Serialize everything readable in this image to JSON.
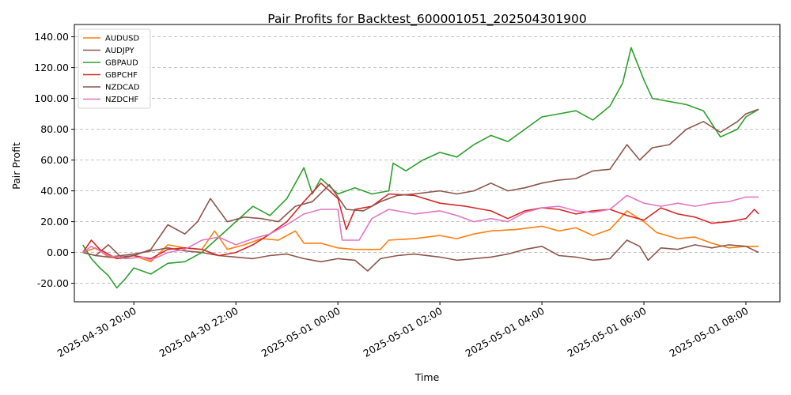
{
  "chart_data": {
    "type": "line",
    "title": "Pair Profits for Backtest_600001051_202504301900",
    "xlabel": "Time",
    "ylabel": "Pair Profit",
    "ylim": [
      -32,
      148
    ],
    "xlim": [
      "2025-04-30 18:50",
      "2025-05-01 08:40"
    ],
    "grid": "y-dashed",
    "legend_position": "top-left",
    "y_ticks": [
      "-20.00",
      "0.00",
      "20.00",
      "40.00",
      "60.00",
      "80.00",
      "100.00",
      "120.00",
      "140.00"
    ],
    "x_ticks": [
      "2025-04-30 20:00",
      "2025-04-30 22:00",
      "2025-05-01 00:00",
      "2025-05-01 02:00",
      "2025-05-01 04:00",
      "2025-05-01 06:00",
      "2025-05-01 08:00"
    ],
    "series": [
      {
        "name": "AUDUSD",
        "color": "#ff7f0e",
        "points": [
          [
            "2025-04-30 19:00",
            0
          ],
          [
            "2025-04-30 19:15",
            3
          ],
          [
            "2025-04-30 19:30",
            -3
          ],
          [
            "2025-04-30 19:45",
            -4
          ],
          [
            "2025-04-30 20:00",
            -2
          ],
          [
            "2025-04-30 20:20",
            -6
          ],
          [
            "2025-04-30 20:40",
            5
          ],
          [
            "2025-04-30 21:00",
            3
          ],
          [
            "2025-04-30 21:20",
            2
          ],
          [
            "2025-04-30 21:35",
            14
          ],
          [
            "2025-04-30 21:50",
            2
          ],
          [
            "2025-04-30 22:10",
            5
          ],
          [
            "2025-04-30 22:30",
            9
          ],
          [
            "2025-04-30 22:50",
            8
          ],
          [
            "2025-04-30 23:10",
            14
          ],
          [
            "2025-04-30 23:20",
            6
          ],
          [
            "2025-04-30 23:40",
            6
          ],
          [
            "2025-05-01 00:00",
            3
          ],
          [
            "2025-05-01 00:20",
            2
          ],
          [
            "2025-05-01 00:50",
            2
          ],
          [
            "2025-05-01 01:00",
            8
          ],
          [
            "2025-05-01 01:30",
            9
          ],
          [
            "2025-05-01 02:00",
            11
          ],
          [
            "2025-05-01 02:20",
            9
          ],
          [
            "2025-05-01 02:40",
            12
          ],
          [
            "2025-05-01 03:00",
            14
          ],
          [
            "2025-05-01 03:30",
            15
          ],
          [
            "2025-05-01 04:00",
            17
          ],
          [
            "2025-05-01 04:20",
            14
          ],
          [
            "2025-05-01 04:40",
            16
          ],
          [
            "2025-05-01 05:00",
            11
          ],
          [
            "2025-05-01 05:20",
            15
          ],
          [
            "2025-05-01 05:40",
            27
          ],
          [
            "2025-05-01 06:00",
            20
          ],
          [
            "2025-05-01 06:15",
            13
          ],
          [
            "2025-05-01 06:40",
            9
          ],
          [
            "2025-05-01 07:00",
            10
          ],
          [
            "2025-05-01 07:20",
            6
          ],
          [
            "2025-05-01 07:40",
            3
          ],
          [
            "2025-05-01 08:00",
            4
          ],
          [
            "2025-05-01 08:15",
            4
          ]
        ]
      },
      {
        "name": "AUDJPY",
        "color": "#8c564b",
        "points": [
          [
            "2025-04-30 19:00",
            0
          ],
          [
            "2025-04-30 19:15",
            -2
          ],
          [
            "2025-04-30 19:30",
            -3
          ],
          [
            "2025-04-30 19:45",
            -2
          ],
          [
            "2025-04-30 20:00",
            -1
          ],
          [
            "2025-04-30 20:20",
            1
          ],
          [
            "2025-04-30 20:40",
            3
          ],
          [
            "2025-04-30 21:00",
            1
          ],
          [
            "2025-04-30 21:20",
            0
          ],
          [
            "2025-04-30 21:40",
            -2
          ],
          [
            "2025-04-30 22:00",
            -3
          ],
          [
            "2025-04-30 22:20",
            -4
          ],
          [
            "2025-04-30 22:40",
            -2
          ],
          [
            "2025-04-30 23:00",
            -1
          ],
          [
            "2025-04-30 23:20",
            -4
          ],
          [
            "2025-04-30 23:40",
            -6
          ],
          [
            "2025-05-01 00:00",
            -4
          ],
          [
            "2025-05-01 00:20",
            -5
          ],
          [
            "2025-05-01 00:35",
            -12
          ],
          [
            "2025-05-01 00:50",
            -4
          ],
          [
            "2025-05-01 01:10",
            -2
          ],
          [
            "2025-05-01 01:30",
            -1
          ],
          [
            "2025-05-01 02:00",
            -3
          ],
          [
            "2025-05-01 02:20",
            -5
          ],
          [
            "2025-05-01 02:40",
            -4
          ],
          [
            "2025-05-01 03:00",
            -3
          ],
          [
            "2025-05-01 03:20",
            -1
          ],
          [
            "2025-05-01 03:40",
            2
          ],
          [
            "2025-05-01 04:00",
            4
          ],
          [
            "2025-05-01 04:20",
            -2
          ],
          [
            "2025-05-01 04:40",
            -3
          ],
          [
            "2025-05-01 05:00",
            -5
          ],
          [
            "2025-05-01 05:20",
            -4
          ],
          [
            "2025-05-01 05:40",
            8
          ],
          [
            "2025-05-01 05:55",
            4
          ],
          [
            "2025-05-01 06:05",
            -5
          ],
          [
            "2025-05-01 06:20",
            3
          ],
          [
            "2025-05-01 06:40",
            2
          ],
          [
            "2025-05-01 07:00",
            5
          ],
          [
            "2025-05-01 07:20",
            3
          ],
          [
            "2025-05-01 07:40",
            5
          ],
          [
            "2025-05-01 08:00",
            4
          ],
          [
            "2025-05-01 08:15",
            0
          ]
        ]
      },
      {
        "name": "GBPAUD",
        "color": "#2ca02c",
        "points": [
          [
            "2025-04-30 19:00",
            5
          ],
          [
            "2025-04-30 19:10",
            -4
          ],
          [
            "2025-04-30 19:20",
            -10
          ],
          [
            "2025-04-30 19:30",
            -15
          ],
          [
            "2025-04-30 19:40",
            -23
          ],
          [
            "2025-04-30 19:50",
            -17
          ],
          [
            "2025-04-30 20:00",
            -10
          ],
          [
            "2025-04-30 20:20",
            -14
          ],
          [
            "2025-04-30 20:40",
            -7
          ],
          [
            "2025-04-30 21:00",
            -6
          ],
          [
            "2025-04-30 21:20",
            0
          ],
          [
            "2025-04-30 21:40",
            10
          ],
          [
            "2025-04-30 22:00",
            20
          ],
          [
            "2025-04-30 22:20",
            30
          ],
          [
            "2025-04-30 22:40",
            24
          ],
          [
            "2025-04-30 23:00",
            35
          ],
          [
            "2025-04-30 23:20",
            55
          ],
          [
            "2025-04-30 23:30",
            38
          ],
          [
            "2025-04-30 23:40",
            48
          ],
          [
            "2025-05-01 00:00",
            38
          ],
          [
            "2025-05-01 00:20",
            42
          ],
          [
            "2025-05-01 00:40",
            38
          ],
          [
            "2025-05-01 01:00",
            40
          ],
          [
            "2025-05-01 01:05",
            58
          ],
          [
            "2025-05-01 01:20",
            53
          ],
          [
            "2025-05-01 01:40",
            60
          ],
          [
            "2025-05-01 02:00",
            65
          ],
          [
            "2025-05-01 02:20",
            62
          ],
          [
            "2025-05-01 02:40",
            70
          ],
          [
            "2025-05-01 03:00",
            76
          ],
          [
            "2025-05-01 03:20",
            72
          ],
          [
            "2025-05-01 03:40",
            80
          ],
          [
            "2025-05-01 04:00",
            88
          ],
          [
            "2025-05-01 04:20",
            90
          ],
          [
            "2025-05-01 04:40",
            92
          ],
          [
            "2025-05-01 05:00",
            86
          ],
          [
            "2025-05-01 05:20",
            95
          ],
          [
            "2025-05-01 05:35",
            110
          ],
          [
            "2025-05-01 05:45",
            133
          ],
          [
            "2025-05-01 06:00",
            112
          ],
          [
            "2025-05-01 06:10",
            100
          ],
          [
            "2025-05-01 06:30",
            98
          ],
          [
            "2025-05-01 06:50",
            96
          ],
          [
            "2025-05-01 07:10",
            92
          ],
          [
            "2025-05-01 07:30",
            75
          ],
          [
            "2025-05-01 07:50",
            80
          ],
          [
            "2025-05-01 08:00",
            88
          ],
          [
            "2025-05-01 08:15",
            93
          ]
        ]
      },
      {
        "name": "GBPCHF",
        "color": "#d62728",
        "points": [
          [
            "2025-04-30 19:00",
            0
          ],
          [
            "2025-04-30 19:10",
            8
          ],
          [
            "2025-04-30 19:20",
            2
          ],
          [
            "2025-04-30 19:40",
            -4
          ],
          [
            "2025-04-30 20:00",
            -2
          ],
          [
            "2025-04-30 20:20",
            -4
          ],
          [
            "2025-04-30 20:40",
            2
          ],
          [
            "2025-04-30 21:00",
            3
          ],
          [
            "2025-04-30 21:20",
            2
          ],
          [
            "2025-04-30 21:40",
            -2
          ],
          [
            "2025-04-30 22:00",
            0
          ],
          [
            "2025-04-30 22:20",
            5
          ],
          [
            "2025-04-30 22:40",
            12
          ],
          [
            "2025-04-30 23:00",
            20
          ],
          [
            "2025-04-30 23:20",
            33
          ],
          [
            "2025-04-30 23:40",
            45
          ],
          [
            "2025-05-01 00:00",
            35
          ],
          [
            "2025-05-01 00:10",
            15
          ],
          [
            "2025-05-01 00:20",
            28
          ],
          [
            "2025-05-01 00:40",
            30
          ],
          [
            "2025-05-01 01:00",
            38
          ],
          [
            "2025-05-01 01:30",
            37
          ],
          [
            "2025-05-01 02:00",
            32
          ],
          [
            "2025-05-01 02:30",
            30
          ],
          [
            "2025-05-01 03:00",
            27
          ],
          [
            "2025-05-01 03:20",
            22
          ],
          [
            "2025-05-01 03:40",
            27
          ],
          [
            "2025-05-01 04:00",
            29
          ],
          [
            "2025-05-01 04:20",
            28
          ],
          [
            "2025-05-01 04:40",
            25
          ],
          [
            "2025-05-01 05:00",
            27
          ],
          [
            "2025-05-01 05:20",
            28
          ],
          [
            "2025-05-01 05:40",
            24
          ],
          [
            "2025-05-01 06:00",
            21
          ],
          [
            "2025-05-01 06:20",
            29
          ],
          [
            "2025-05-01 06:40",
            25
          ],
          [
            "2025-05-01 07:00",
            23
          ],
          [
            "2025-05-01 07:20",
            19
          ],
          [
            "2025-05-01 07:40",
            20
          ],
          [
            "2025-05-01 08:00",
            22
          ],
          [
            "2025-05-01 08:10",
            28
          ],
          [
            "2025-05-01 08:15",
            25
          ]
        ]
      },
      {
        "name": "NZDCAD",
        "color": "#8c564b",
        "points": [
          [
            "2025-04-30 19:00",
            0
          ],
          [
            "2025-04-30 19:15",
            -2
          ],
          [
            "2025-04-30 19:30",
            5
          ],
          [
            "2025-04-30 19:45",
            -3
          ],
          [
            "2025-04-30 20:00",
            -2
          ],
          [
            "2025-04-30 20:20",
            2
          ],
          [
            "2025-04-30 20:40",
            18
          ],
          [
            "2025-04-30 21:00",
            12
          ],
          [
            "2025-04-30 21:15",
            20
          ],
          [
            "2025-04-30 21:30",
            35
          ],
          [
            "2025-04-30 21:50",
            20
          ],
          [
            "2025-04-30 22:10",
            23
          ],
          [
            "2025-04-30 22:30",
            22
          ],
          [
            "2025-04-30 22:50",
            20
          ],
          [
            "2025-04-30 23:10",
            30
          ],
          [
            "2025-04-30 23:30",
            33
          ],
          [
            "2025-04-30 23:50",
            44
          ],
          [
            "2025-05-01 00:10",
            28
          ],
          [
            "2025-05-01 00:30",
            27
          ],
          [
            "2025-05-01 00:50",
            33
          ],
          [
            "2025-05-01 01:10",
            37
          ],
          [
            "2025-05-01 01:30",
            38
          ],
          [
            "2025-05-01 02:00",
            40
          ],
          [
            "2025-05-01 02:20",
            38
          ],
          [
            "2025-05-01 02:40",
            40
          ],
          [
            "2025-05-01 03:00",
            45
          ],
          [
            "2025-05-01 03:20",
            40
          ],
          [
            "2025-05-01 03:40",
            42
          ],
          [
            "2025-05-01 04:00",
            45
          ],
          [
            "2025-05-01 04:20",
            47
          ],
          [
            "2025-05-01 04:40",
            48
          ],
          [
            "2025-05-01 05:00",
            53
          ],
          [
            "2025-05-01 05:20",
            54
          ],
          [
            "2025-05-01 05:40",
            70
          ],
          [
            "2025-05-01 05:55",
            60
          ],
          [
            "2025-05-01 06:10",
            68
          ],
          [
            "2025-05-01 06:30",
            70
          ],
          [
            "2025-05-01 06:50",
            80
          ],
          [
            "2025-05-01 07:10",
            85
          ],
          [
            "2025-05-01 07:30",
            78
          ],
          [
            "2025-05-01 07:50",
            85
          ],
          [
            "2025-05-01 08:00",
            90
          ],
          [
            "2025-05-01 08:15",
            93
          ]
        ]
      },
      {
        "name": "NZDCHF",
        "color": "#e377c2",
        "points": [
          [
            "2025-04-30 19:00",
            0
          ],
          [
            "2025-04-30 19:10",
            4
          ],
          [
            "2025-04-30 19:30",
            -2
          ],
          [
            "2025-04-30 19:50",
            -4
          ],
          [
            "2025-04-30 20:10",
            -3
          ],
          [
            "2025-04-30 20:20",
            -5
          ],
          [
            "2025-04-30 20:40",
            0
          ],
          [
            "2025-04-30 21:00",
            2
          ],
          [
            "2025-04-30 21:20",
            8
          ],
          [
            "2025-04-30 21:40",
            10
          ],
          [
            "2025-04-30 22:00",
            5
          ],
          [
            "2025-04-30 22:20",
            9
          ],
          [
            "2025-04-30 22:40",
            12
          ],
          [
            "2025-04-30 23:00",
            18
          ],
          [
            "2025-04-30 23:20",
            25
          ],
          [
            "2025-04-30 23:40",
            28
          ],
          [
            "2025-05-01 00:00",
            28
          ],
          [
            "2025-05-01 00:05",
            8
          ],
          [
            "2025-05-01 00:25",
            8
          ],
          [
            "2025-05-01 00:40",
            22
          ],
          [
            "2025-05-01 01:00",
            28
          ],
          [
            "2025-05-01 01:30",
            25
          ],
          [
            "2025-05-01 02:00",
            27
          ],
          [
            "2025-05-01 02:20",
            24
          ],
          [
            "2025-05-01 02:40",
            20
          ],
          [
            "2025-05-01 03:00",
            22
          ],
          [
            "2025-05-01 03:20",
            20
          ],
          [
            "2025-05-01 03:40",
            26
          ],
          [
            "2025-05-01 04:00",
            29
          ],
          [
            "2025-05-01 04:20",
            30
          ],
          [
            "2025-05-01 04:40",
            27
          ],
          [
            "2025-05-01 05:00",
            26
          ],
          [
            "2025-05-01 05:20",
            28
          ],
          [
            "2025-05-01 05:40",
            37
          ],
          [
            "2025-05-01 06:00",
            32
          ],
          [
            "2025-05-01 06:20",
            30
          ],
          [
            "2025-05-01 06:40",
            32
          ],
          [
            "2025-05-01 07:00",
            30
          ],
          [
            "2025-05-01 07:20",
            32
          ],
          [
            "2025-05-01 07:40",
            33
          ],
          [
            "2025-05-01 08:00",
            36
          ],
          [
            "2025-05-01 08:15",
            36
          ]
        ]
      }
    ]
  }
}
